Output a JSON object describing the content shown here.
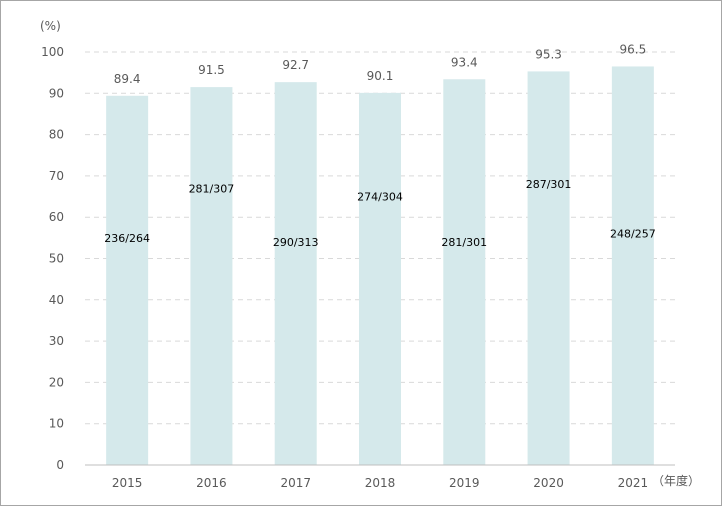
{
  "chart_data": {
    "type": "bar",
    "ylabel": "(%)",
    "xlabel": "（年度）",
    "ylim": [
      0,
      100
    ],
    "yticks": [
      0,
      10,
      20,
      30,
      40,
      50,
      60,
      70,
      80,
      90,
      100
    ],
    "categories": [
      "2015",
      "2016",
      "2017",
      "2018",
      "2019",
      "2020",
      "2021"
    ],
    "values": [
      89.4,
      91.5,
      92.7,
      90.1,
      93.4,
      95.3,
      96.5
    ],
    "value_labels": [
      "89.4",
      "91.5",
      "92.7",
      "90.1",
      "93.4",
      "95.3",
      "96.5"
    ],
    "inner_labels": [
      "236/264",
      "281/307",
      "290/313",
      "274/304",
      "281/301",
      "287/301",
      "248/257"
    ],
    "inner_label_pos": [
      55,
      67,
      54,
      65,
      54,
      68,
      56
    ],
    "grid": true,
    "colors": {
      "bar": "#d5e9eb",
      "grid": "#d9d9d9",
      "axis": "#bfbfbf"
    }
  }
}
